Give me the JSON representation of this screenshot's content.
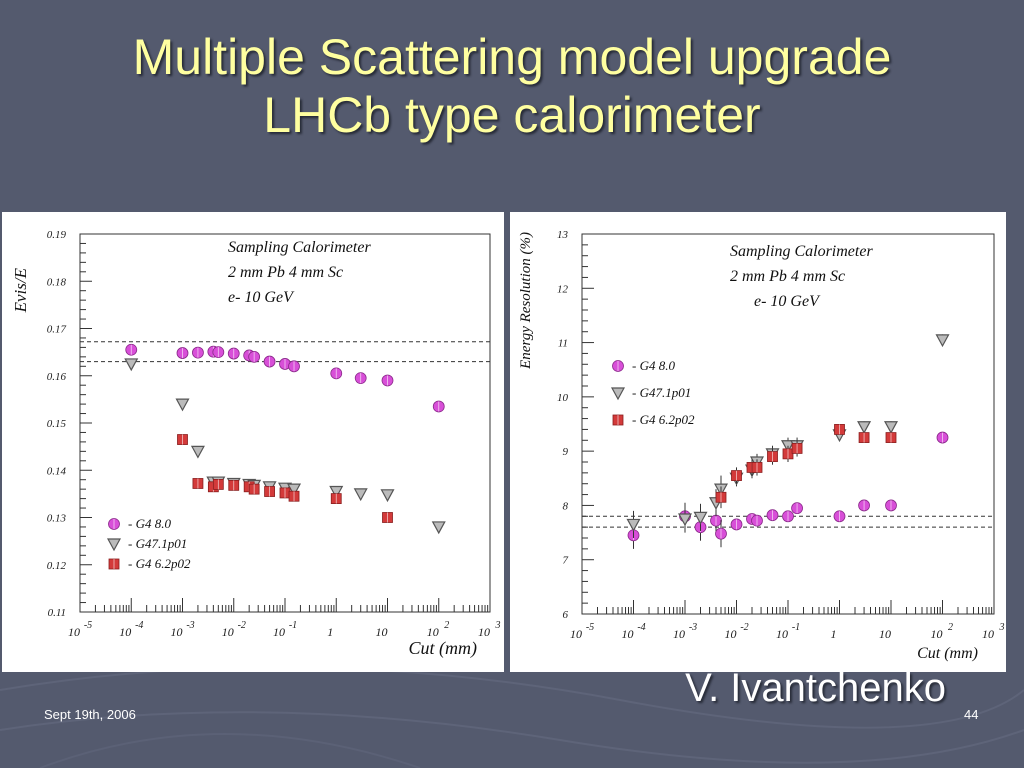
{
  "slide": {
    "title_line1": "Multiple Scattering model upgrade",
    "title_line2": "LHCb type calorimeter",
    "author": "V. Ivantchenko",
    "date": "Sept 19th, 2006",
    "page": "44"
  },
  "colors": {
    "background": "#545a6e",
    "title": "#ffffa0",
    "g48": "#d84fd8",
    "g47": "#555555",
    "g46": "#d33a3a"
  },
  "chart_data": [
    {
      "type": "scatter",
      "xscale": "log",
      "xlim": [
        1e-05,
        1000
      ],
      "ylim": [
        0.11,
        0.19
      ],
      "xlabel": "Cut (mm)",
      "ylabel": "Evis/E",
      "yticks": [
        "0.11",
        "0.12",
        "0.13",
        "0.14",
        "0.15",
        "0.16",
        "0.17",
        "0.18",
        "0.19"
      ],
      "xticks": [
        {
          "base": "10",
          "exp": "-5"
        },
        {
          "base": "10",
          "exp": "-4"
        },
        {
          "base": "10",
          "exp": "-3"
        },
        {
          "base": "10",
          "exp": "-2"
        },
        {
          "base": "10",
          "exp": "-1"
        },
        {
          "base": "1",
          "exp": ""
        },
        {
          "base": "10",
          "exp": ""
        },
        {
          "base": "10",
          "exp": "2"
        },
        {
          "base": "10",
          "exp": "3"
        }
      ],
      "annotation": [
        "Sampling Calorimeter",
        "2 mm Pb 4 mm Sc",
        "e- 10 GeV"
      ],
      "ref_lines": [
        0.1672,
        0.163
      ],
      "grid": false,
      "legend_position": "bottom-left",
      "series": [
        {
          "name": "- G4 8.0",
          "marker": "circle",
          "color": "#d84fd8",
          "x": [
            0.0001,
            0.001,
            0.002,
            0.004,
            0.005,
            0.01,
            0.02,
            0.025,
            0.05,
            0.1,
            0.15,
            1,
            3,
            10,
            100
          ],
          "y": [
            0.1655,
            0.1648,
            0.1649,
            0.1651,
            0.165,
            0.1647,
            0.1643,
            0.164,
            0.163,
            0.1625,
            0.162,
            0.1605,
            0.1595,
            0.159,
            0.1535
          ]
        },
        {
          "name": "- G47.1p01",
          "marker": "triangle",
          "color": "#555555",
          "x": [
            0.0001,
            0.001,
            0.002,
            0.004,
            0.005,
            0.01,
            0.02,
            0.025,
            0.05,
            0.1,
            0.15,
            1,
            3,
            10,
            100
          ],
          "y": [
            0.1625,
            0.154,
            0.144,
            0.1375,
            0.1375,
            0.1372,
            0.137,
            0.1368,
            0.1365,
            0.1362,
            0.136,
            0.1355,
            0.135,
            0.1348,
            0.128
          ]
        },
        {
          "name": "- G4 6.2p02",
          "marker": "square",
          "color": "#d33a3a",
          "x": [
            0.001,
            0.002,
            0.004,
            0.005,
            0.01,
            0.02,
            0.025,
            0.05,
            0.1,
            0.15,
            1,
            10
          ],
          "y": [
            0.1465,
            0.1372,
            0.1365,
            0.137,
            0.1368,
            0.1365,
            0.136,
            0.1355,
            0.1352,
            0.1345,
            0.134,
            0.13
          ]
        }
      ]
    },
    {
      "type": "scatter",
      "xscale": "log",
      "xlim": [
        1e-05,
        1000
      ],
      "ylim": [
        6,
        13
      ],
      "xlabel": "Cut (mm)",
      "ylabel": "Energy Resolution (%)",
      "yticks": [
        "6",
        "7",
        "8",
        "9",
        "10",
        "11",
        "12",
        "13"
      ],
      "xticks": [
        {
          "base": "10",
          "exp": "-5"
        },
        {
          "base": "10",
          "exp": "-4"
        },
        {
          "base": "10",
          "exp": "-3"
        },
        {
          "base": "10",
          "exp": "-2"
        },
        {
          "base": "10",
          "exp": "-1"
        },
        {
          "base": "1",
          "exp": ""
        },
        {
          "base": "10",
          "exp": ""
        },
        {
          "base": "10",
          "exp": "2"
        },
        {
          "base": "10",
          "exp": "3"
        }
      ],
      "annotation": [
        "Sampling Calorimeter",
        "2 mm Pb 4 mm Sc",
        "e- 10 GeV"
      ],
      "ref_lines": [
        7.8,
        7.6
      ],
      "grid": false,
      "legend_position": "top-left",
      "series": [
        {
          "name": "- G4 8.0",
          "marker": "circle",
          "color": "#d84fd8",
          "x": [
            0.0001,
            0.001,
            0.002,
            0.004,
            0.005,
            0.01,
            0.02,
            0.025,
            0.05,
            0.1,
            0.15,
            1,
            3,
            10,
            100
          ],
          "y": [
            7.45,
            7.8,
            7.6,
            7.72,
            7.48,
            7.65,
            7.75,
            7.72,
            7.82,
            7.8,
            7.95,
            7.8,
            8.0,
            8.0,
            9.25
          ],
          "yerr": [
            0.25,
            0.25,
            0.25,
            0.25,
            0.25,
            0.1,
            0.1,
            0.1,
            0.1,
            0.1,
            0.1,
            0.1,
            0.1,
            0.1,
            0.1
          ]
        },
        {
          "name": "- G47.1p01",
          "marker": "triangle",
          "color": "#555555",
          "x": [
            0.0001,
            0.001,
            0.002,
            0.004,
            0.005,
            0.01,
            0.02,
            0.025,
            0.05,
            0.1,
            0.15,
            1,
            3,
            10,
            100
          ],
          "y": [
            7.65,
            7.75,
            7.78,
            8.05,
            8.3,
            8.5,
            8.65,
            8.8,
            8.95,
            9.1,
            9.1,
            9.3,
            9.45,
            9.45,
            11.05
          ],
          "yerr": [
            0.25,
            0.25,
            0.25,
            0.25,
            0.25,
            0.15,
            0.15,
            0.15,
            0.15,
            0.15,
            0.15,
            0.1,
            0.1,
            0.1,
            0.1
          ]
        },
        {
          "name": "- G4 6.2p02",
          "marker": "square",
          "color": "#d33a3a",
          "x": [
            0.005,
            0.01,
            0.02,
            0.025,
            0.05,
            0.1,
            0.15,
            1,
            3,
            10
          ],
          "y": [
            8.15,
            8.55,
            8.7,
            8.7,
            8.9,
            8.95,
            9.05,
            9.4,
            9.25,
            9.25
          ],
          "yerr": [
            0.2,
            0.15,
            0.15,
            0.15,
            0.15,
            0.15,
            0.15,
            0.1,
            0.1,
            0.1
          ]
        }
      ]
    }
  ]
}
